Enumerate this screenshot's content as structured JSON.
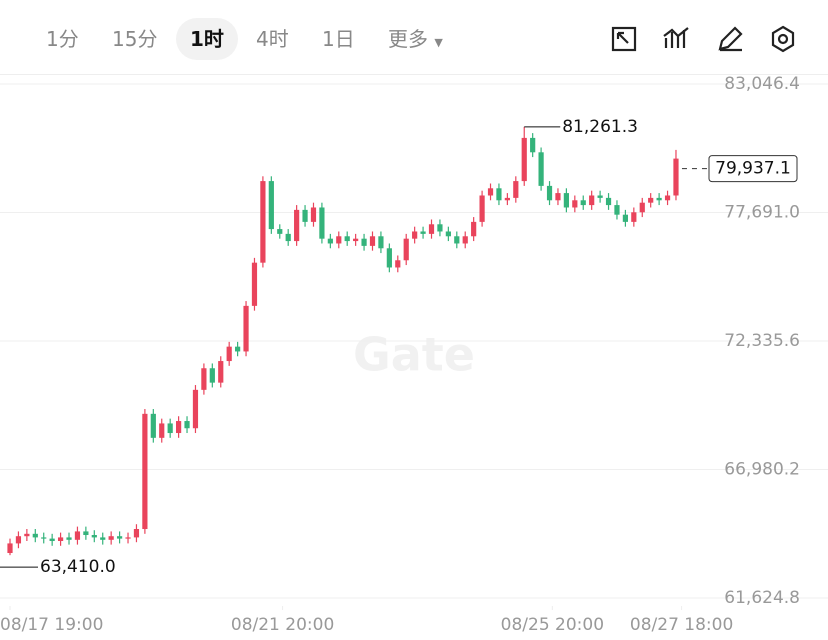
{
  "toolbar": {
    "intervals": [
      "1分",
      "15分",
      "1时",
      "4时",
      "1日"
    ],
    "active_interval": 2,
    "more": "更多"
  },
  "watermark": "Gate",
  "chart_data": {
    "type": "candlestick",
    "x": [
      0,
      3,
      6,
      9,
      12,
      15,
      18,
      21,
      24,
      27,
      30,
      33,
      36,
      39,
      42,
      45,
      48,
      51,
      54,
      57,
      60,
      63,
      66,
      69,
      72,
      75,
      78,
      81,
      84,
      87,
      90,
      93,
      96,
      99,
      102,
      105,
      108,
      111,
      114,
      117,
      120,
      123,
      126,
      129,
      132,
      135,
      138,
      141,
      144,
      147,
      150,
      153,
      156,
      159,
      162,
      165,
      168,
      171,
      174,
      177,
      180,
      183,
      186,
      189,
      192,
      195,
      198,
      201,
      204,
      207,
      210,
      213,
      216,
      219,
      222,
      225,
      228,
      231,
      234,
      237
    ],
    "open": [
      63500,
      63900,
      64200,
      64300,
      64150,
      64100,
      64000,
      64150,
      64050,
      64400,
      64250,
      64150,
      64050,
      64200,
      64100,
      64150,
      64500,
      69300,
      68300,
      68900,
      68500,
      69000,
      68700,
      70300,
      71200,
      70600,
      71500,
      72100,
      71900,
      73800,
      75600,
      79000,
      77000,
      76800,
      76500,
      77800,
      77300,
      77900,
      76600,
      76400,
      76700,
      76500,
      76600,
      76300,
      76700,
      76200,
      75400,
      75700,
      76600,
      76900,
      76800,
      77200,
      76900,
      76700,
      76400,
      76700,
      77300,
      78400,
      78700,
      78200,
      78300,
      79000,
      80800,
      80200,
      78800,
      78200,
      78500,
      77900,
      78200,
      78000,
      78400,
      78300,
      78000,
      77600,
      77300,
      77700,
      78100,
      78300,
      78200,
      78400
    ],
    "high": [
      64100,
      64400,
      64500,
      64500,
      64350,
      64300,
      64350,
      64350,
      64600,
      64600,
      64450,
      64350,
      64400,
      64400,
      64350,
      64700,
      69500,
      69500,
      69100,
      69100,
      69200,
      69200,
      70500,
      71400,
      71400,
      71700,
      72300,
      72300,
      74000,
      75800,
      79200,
      79200,
      77200,
      77000,
      78000,
      78000,
      78100,
      78100,
      76800,
      76900,
      76900,
      76800,
      76800,
      76900,
      76900,
      76400,
      75900,
      76800,
      77100,
      77100,
      77400,
      77400,
      77100,
      76900,
      76900,
      77500,
      78600,
      78900,
      78900,
      78500,
      79200,
      81261.3,
      81000,
      80400,
      79000,
      78700,
      78700,
      78400,
      78400,
      78600,
      78600,
      78500,
      78200,
      77800,
      77900,
      78300,
      78500,
      78500,
      78600,
      80300
    ],
    "low": [
      63410,
      63700,
      64000,
      63950,
      63900,
      63800,
      63800,
      63850,
      63850,
      64050,
      63950,
      63850,
      63850,
      63900,
      63900,
      63950,
      64300,
      68100,
      68100,
      68300,
      68300,
      68500,
      68500,
      70100,
      70400,
      70400,
      71300,
      71700,
      71700,
      73600,
      75400,
      76800,
      76600,
      76300,
      76300,
      77100,
      77100,
      76400,
      76200,
      76200,
      76300,
      76300,
      76100,
      76100,
      76000,
      75200,
      75200,
      75500,
      76400,
      76600,
      76600,
      76700,
      76500,
      76200,
      76200,
      76500,
      77100,
      78200,
      78000,
      78000,
      78100,
      78800,
      80000,
      78600,
      78000,
      78000,
      77700,
      77700,
      77800,
      77800,
      78100,
      77800,
      77400,
      77100,
      77100,
      77500,
      77900,
      78000,
      78000,
      78200
    ],
    "close": [
      63900,
      64200,
      64300,
      64150,
      64100,
      64000,
      64150,
      64050,
      64400,
      64250,
      64150,
      64050,
      64200,
      64100,
      64150,
      64500,
      69300,
      68300,
      68900,
      68500,
      69000,
      68700,
      70300,
      71200,
      70600,
      71500,
      72100,
      71900,
      73800,
      75600,
      79000,
      77000,
      76800,
      76500,
      77800,
      77300,
      77900,
      76600,
      76400,
      76700,
      76500,
      76600,
      76300,
      76700,
      76200,
      75400,
      75700,
      76600,
      76900,
      76800,
      77200,
      76900,
      76700,
      76400,
      76700,
      77300,
      78400,
      78700,
      78200,
      78300,
      79000,
      80800,
      80200,
      78800,
      78200,
      78500,
      77900,
      78200,
      78000,
      78400,
      78300,
      78000,
      77600,
      77300,
      77700,
      78100,
      78300,
      78200,
      78400,
      79937.1
    ],
    "up_color": "#e9445c",
    "down_color": "#34b37b",
    "xlim": [
      -3.56,
      291.1
    ],
    "xticks": [
      {
        "value": 0,
        "label": "08/17 19:00"
      },
      {
        "value": 97,
        "label": "08/21 20:00"
      },
      {
        "value": 193,
        "label": "08/25 20:00"
      },
      {
        "value": 239,
        "label": "08/27 18:00"
      }
    ],
    "ylim": [
      61624.8,
      83046.4
    ],
    "yticks": [
      {
        "value": 61624.8,
        "label": "61,624.8"
      },
      {
        "value": 66980.2,
        "label": "66,980.2"
      },
      {
        "value": 72335.6,
        "label": "72,335.6"
      },
      {
        "value": 77691.0,
        "label": "77,691.0"
      },
      {
        "value": 83046.4,
        "label": "83,046.4"
      }
    ],
    "grid": true,
    "high_marker": {
      "value": 81261.3,
      "label": "81,261.3"
    },
    "low_marker": {
      "value": 63410.0,
      "label": "63,410.0"
    },
    "last_price": {
      "value": 79937.1,
      "label": "79,937.1"
    }
  }
}
